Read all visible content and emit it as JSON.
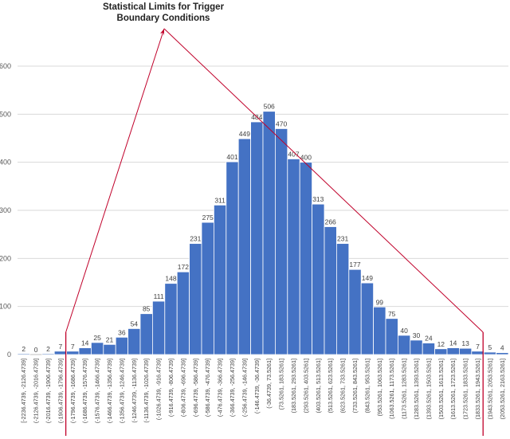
{
  "chart_data": {
    "type": "bar",
    "title": "",
    "xlabel": "",
    "ylabel": "",
    "ylim": [
      0,
      600
    ],
    "yticks": [
      0,
      100,
      200,
      300,
      400,
      500,
      600
    ],
    "grid": "horizontal",
    "legend": "none",
    "categories": [
      "[-2236.4739, -2126.4739]",
      "(-2126.4739, -2016.4739]",
      "(-2016.4739, -1906.4739]",
      "(-1906.4739, -1796.4739]",
      "(-1796.4739, -1686.4739]",
      "(-1686.4739, -1576.4739]",
      "(-1576.4739, -1466.4739]",
      "(-1466.4739, -1356.4739]",
      "(-1356.4739, -1246.4739]",
      "(-1246.4739, -1136.4739]",
      "(-1136.4739, -1026.4739]",
      "(-1026.4739, -916.4739]",
      "(-916.4739, -806.4739]",
      "(-806.4739, -696.4739]",
      "(-696.4739, -586.4739]",
      "(-586.4739, -476.4739]",
      "(-476.4739, -366.4739]",
      "(-366.4739, -256.4739]",
      "(-256.4739, -146.4739]",
      "(-146.4739, -36.4739]",
      "(-36.4739, 73.5261]",
      "(73.5261, 183.5261]",
      "(183.5261, 293.5261]",
      "(293.5261, 403.5261]",
      "(403.5261, 513.5261]",
      "(513.5261, 623.5261]",
      "(623.5261, 733.5261]",
      "(733.5261, 843.5261]",
      "(843.5261, 953.5261]",
      "(953.5261, 1063.5261]",
      "(1063.5261, 1173.5261]",
      "(1173.5261, 1283.5261]",
      "(1283.5261, 1393.5261]",
      "(1393.5261, 1503.5261]",
      "(1503.5261, 1613.5261]",
      "(1613.5261, 1723.5261]",
      "(1723.5261, 1833.5261]",
      "(1833.5261, 1943.5261]",
      "(1943.5261, 2053.5261]",
      "(2053.5261, 2163.5261]"
    ],
    "values": [
      2,
      0,
      2,
      7,
      7,
      14,
      25,
      21,
      36,
      54,
      85,
      111,
      148,
      172,
      231,
      275,
      311,
      401,
      449,
      484,
      506,
      470,
      407,
      400,
      313,
      266,
      231,
      177,
      149,
      99,
      75,
      40,
      30,
      24,
      12,
      14,
      13,
      7,
      5,
      4
    ],
    "annotation": {
      "text_lines": [
        "Statistical Limits for Trigger",
        "Boundary Conditions"
      ],
      "left_limit_category_index": 4,
      "right_limit_category_index": 38
    },
    "colors": {
      "bar": "#4472c4",
      "bar_edge": "#ffffff",
      "annotation_line": "#c0002a",
      "grid": "#d9d9d9"
    }
  }
}
